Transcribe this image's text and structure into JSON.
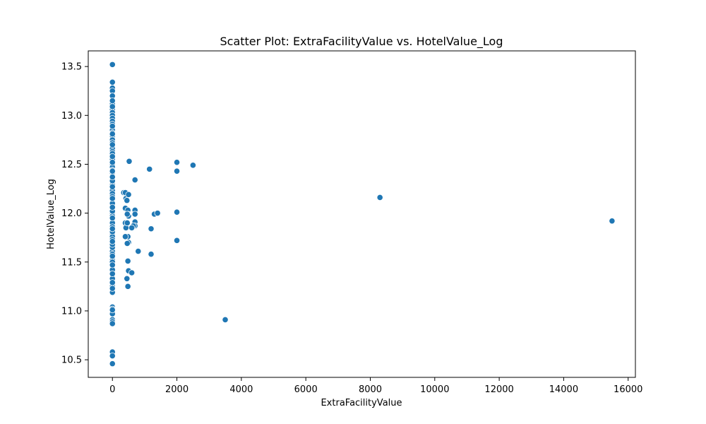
{
  "chart_data": {
    "type": "scatter",
    "title": "Scatter Plot: ExtraFacilityValue vs. HotelValue_Log",
    "xlabel": "ExtraFacilityValue",
    "ylabel": "HotelValue_Log",
    "xlim": [
      -750,
      16225
    ],
    "ylim": [
      10.32,
      13.66
    ],
    "xticks": [
      0,
      2000,
      4000,
      6000,
      8000,
      10000,
      12000,
      14000,
      16000
    ],
    "xtick_labels": [
      "0",
      "2000",
      "4000",
      "6000",
      "8000",
      "10000",
      "12000",
      "14000",
      "16000"
    ],
    "yticks": [
      10.5,
      11.0,
      11.5,
      12.0,
      12.5,
      13.0,
      13.5
    ],
    "ytick_labels": [
      "10.5",
      "11.0",
      "11.5",
      "12.0",
      "12.5",
      "13.0",
      "13.5"
    ],
    "grid": false,
    "legend": "none",
    "series": [
      {
        "color": "#1f77b4",
        "marker_edge": "#ffffff",
        "x": [
          0,
          0,
          0,
          0,
          0,
          0,
          0,
          0,
          0,
          0,
          0,
          0,
          0,
          0,
          0,
          0,
          0,
          0,
          0,
          0,
          0,
          0,
          0,
          0,
          0,
          0,
          0,
          0,
          0,
          0,
          0,
          0,
          0,
          0,
          0,
          0,
          0,
          0,
          0,
          0,
          0,
          0,
          0,
          0,
          0,
          0,
          0,
          0,
          0,
          0,
          0,
          0,
          0,
          0,
          0,
          0,
          0,
          0,
          0,
          0,
          0,
          0,
          0,
          0,
          0,
          0,
          0,
          0,
          0,
          0,
          0,
          0,
          0,
          0,
          0,
          0,
          0,
          0,
          0,
          0,
          0,
          0,
          0,
          0,
          0,
          0,
          0,
          0,
          0,
          0,
          0,
          0,
          0,
          0,
          0,
          0,
          0,
          0,
          0,
          0,
          0,
          0,
          0,
          0,
          0,
          0,
          0,
          0,
          0,
          0,
          0,
          0,
          0,
          350,
          400,
          420,
          400,
          450,
          480,
          500,
          480,
          500,
          520,
          400,
          420,
          460,
          480,
          500,
          460,
          480,
          500,
          450,
          480,
          400,
          460,
          600,
          700,
          700,
          700,
          700,
          700,
          650,
          600,
          800,
          1150,
          1200,
          1200,
          1300,
          1400,
          2000,
          2000,
          2000,
          2000,
          2500,
          3500,
          8300,
          15500
        ],
        "y": [
          13.52,
          13.34,
          13.28,
          13.25,
          13.2,
          13.12,
          13.06,
          13.03,
          13.0,
          12.97,
          12.94,
          12.91,
          12.88,
          12.85,
          12.82,
          12.79,
          12.75,
          12.72,
          12.69,
          12.66,
          12.63,
          12.6,
          12.57,
          12.54,
          12.5,
          12.47,
          12.44,
          12.41,
          12.38,
          12.35,
          12.32,
          12.29,
          12.26,
          12.23,
          12.2,
          12.17,
          12.14,
          12.11,
          12.08,
          12.05,
          12.03,
          12.0,
          11.97,
          11.94,
          11.91,
          11.88,
          11.85,
          11.82,
          11.79,
          11.76,
          11.73,
          11.7,
          11.67,
          11.64,
          11.61,
          11.58,
          11.55,
          11.52,
          11.49,
          11.46,
          11.43,
          11.4,
          11.37,
          11.34,
          11.31,
          11.28,
          11.25,
          11.22,
          11.19,
          11.04,
          11.02,
          10.99,
          10.91,
          10.89,
          10.87,
          10.58,
          10.54,
          10.46,
          12.7,
          12.33,
          12.02,
          11.81,
          11.65,
          12.55,
          12.1,
          11.9,
          11.5,
          13.09,
          12.89,
          12.43,
          12.15,
          11.86,
          11.33,
          12.61,
          12.27,
          11.95,
          11.68,
          11.42,
          13.15,
          12.81,
          12.52,
          12.37,
          12.06,
          11.84,
          11.71,
          11.56,
          11.47,
          11.38,
          11.29,
          11.23,
          10.97,
          11.01,
          12.58,
          12.21,
          12.21,
          12.15,
          12.05,
          12.13,
          12.03,
          12.19,
          11.99,
          11.97,
          12.53,
          11.9,
          11.85,
          11.9,
          11.76,
          11.7,
          11.69,
          11.51,
          11.41,
          11.33,
          11.25,
          11.76,
          11.99,
          11.39,
          12.34,
          12.03,
          11.99,
          11.91,
          11.87,
          11.87,
          11.85,
          11.61,
          12.45,
          11.84,
          11.58,
          11.99,
          12.0,
          12.52,
          12.43,
          12.01,
          11.72,
          12.49,
          10.91,
          12.16,
          11.92
        ]
      }
    ]
  }
}
